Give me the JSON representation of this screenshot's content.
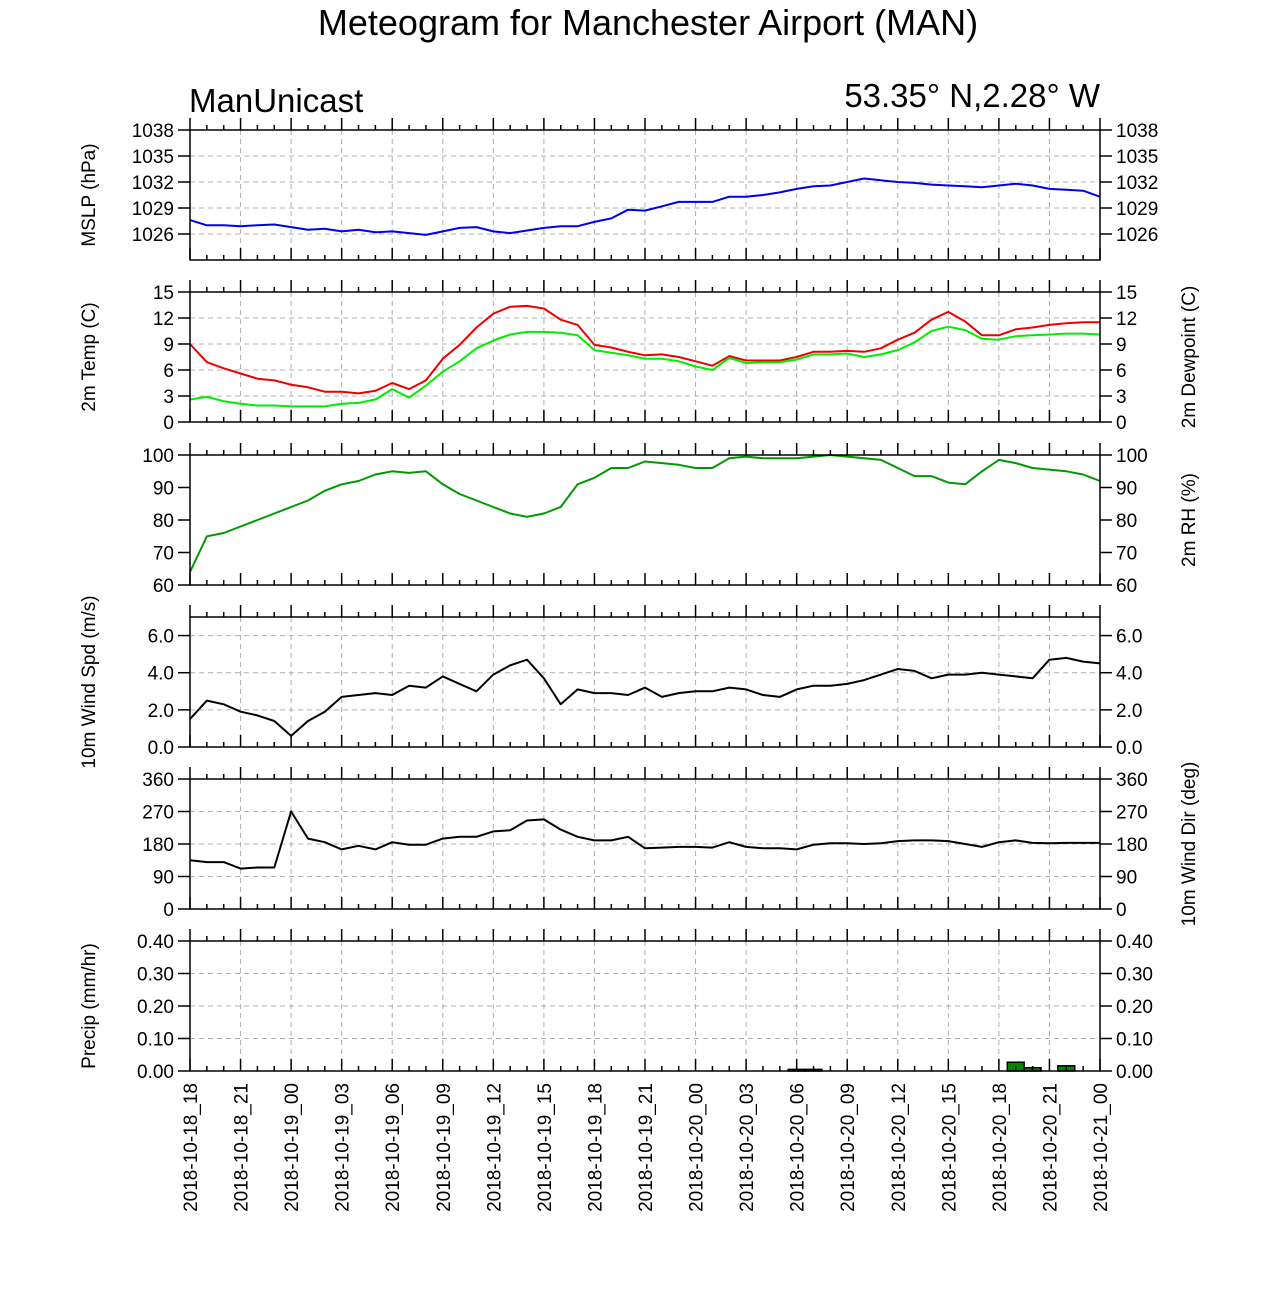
{
  "title": "Meteogram for Manchester Airport (MAN)",
  "left_label": "ManUnicast",
  "right_label": "53.35° N,2.28° W",
  "time_axis": {
    "start": "2018-10-18_18",
    "end": "2018-10-21_00",
    "labels": [
      "2018-10-18_18",
      "2018-10-18_21",
      "2018-10-19_00",
      "2018-10-19_03",
      "2018-10-19_06",
      "2018-10-19_09",
      "2018-10-19_12",
      "2018-10-19_15",
      "2018-10-19_18",
      "2018-10-19_21",
      "2018-10-20_00",
      "2018-10-20_03",
      "2018-10-20_06",
      "2018-10-20_09",
      "2018-10-20_12",
      "2018-10-20_15",
      "2018-10-20_18",
      "2018-10-20_21",
      "2018-10-21_00"
    ]
  },
  "colors": {
    "mslp": "#0000ee",
    "temp": "#ee0000",
    "dewpoint": "#00ee00",
    "rh": "#009900",
    "wind": "#000000",
    "precip_fill": "#008800"
  },
  "chart_data": [
    {
      "type": "line",
      "ylabel_left": "MSLP (hPa)",
      "ylabel_right": "",
      "ylim": [
        1023,
        1038
      ],
      "yticks": [
        1026,
        1029,
        1032,
        1035,
        1038
      ],
      "ytick_labels": [
        "1026",
        "1029",
        "1032",
        "1035",
        "1038"
      ],
      "grid": true,
      "series": [
        {
          "color": "#0000ee",
          "values": [
            1027.6,
            1027.0,
            1027.0,
            1026.9,
            1027.0,
            1027.1,
            1026.8,
            1026.5,
            1026.6,
            1026.3,
            1026.5,
            1026.2,
            1026.3,
            1026.1,
            1025.9,
            1026.3,
            1026.7,
            1026.8,
            1026.3,
            1026.1,
            1026.4,
            1026.7,
            1026.9,
            1026.9,
            1027.4,
            1027.8,
            1028.8,
            1028.7,
            1029.2,
            1029.7,
            1029.7,
            1029.7,
            1030.3,
            1030.3,
            1030.5,
            1030.8,
            1031.2,
            1031.5,
            1031.6,
            1032.0,
            1032.4,
            1032.2,
            1032.0,
            1031.9,
            1031.7,
            1031.6,
            1031.5,
            1031.4,
            1031.6,
            1031.8,
            1031.6,
            1031.2,
            1031.1,
            1031.0,
            1030.3
          ]
        }
      ]
    },
    {
      "type": "line",
      "ylabel_left": "2m Temp (C)",
      "ylabel_right": "2m Dewpoint (C)",
      "ylim": [
        0,
        15
      ],
      "yticks": [
        0,
        3,
        6,
        9,
        12,
        15
      ],
      "ytick_labels": [
        "0",
        "3",
        "6",
        "9",
        "12",
        "15"
      ],
      "grid": true,
      "series": [
        {
          "color": "#ee0000",
          "values": [
            9.0,
            6.9,
            6.2,
            5.6,
            5.0,
            4.8,
            4.3,
            4.0,
            3.5,
            3.5,
            3.3,
            3.6,
            4.5,
            3.8,
            4.8,
            7.3,
            8.9,
            10.9,
            12.5,
            13.3,
            13.4,
            13.1,
            11.8,
            11.2,
            8.9,
            8.6,
            8.1,
            7.7,
            7.8,
            7.5,
            7.0,
            6.5,
            7.6,
            7.1,
            7.1,
            7.1,
            7.5,
            8.1,
            8.1,
            8.2,
            8.1,
            8.5,
            9.5,
            10.3,
            11.8,
            12.7,
            11.6,
            10.0,
            10.0,
            10.7,
            10.9,
            11.2,
            11.4,
            11.5,
            11.5
          ]
        },
        {
          "color": "#00ee00",
          "values": [
            2.6,
            2.9,
            2.4,
            2.1,
            1.9,
            1.9,
            1.8,
            1.8,
            1.8,
            2.1,
            2.2,
            2.6,
            3.8,
            2.8,
            4.2,
            5.8,
            7.0,
            8.5,
            9.4,
            10.1,
            10.4,
            10.4,
            10.3,
            10.0,
            8.3,
            8.0,
            7.7,
            7.3,
            7.3,
            7.0,
            6.4,
            6.0,
            7.4,
            6.8,
            6.9,
            6.9,
            7.2,
            7.8,
            7.8,
            7.9,
            7.5,
            7.8,
            8.3,
            9.2,
            10.5,
            11.0,
            10.6,
            9.6,
            9.5,
            9.9,
            10.0,
            10.1,
            10.2,
            10.2,
            10.1
          ]
        }
      ]
    },
    {
      "type": "line",
      "ylabel_left": "",
      "ylabel_right": "2m RH (%)",
      "ylim": [
        60,
        100
      ],
      "yticks": [
        60,
        70,
        80,
        90,
        100
      ],
      "ytick_labels": [
        "60",
        "70",
        "80",
        "90",
        "100"
      ],
      "grid": false,
      "series": [
        {
          "color": "#009900",
          "values": [
            64,
            75,
            76,
            78,
            80,
            82,
            84,
            86,
            89,
            91,
            92,
            94,
            95,
            94.5,
            95,
            91,
            88,
            86,
            84,
            82,
            81,
            82,
            84,
            91,
            93,
            96,
            96,
            98,
            97.5,
            97,
            96,
            96,
            99,
            99.5,
            99,
            99,
            99,
            99.5,
            100,
            99.5,
            99,
            98.5,
            96,
            93.5,
            93.5,
            91.5,
            91,
            95,
            98.5,
            97.5,
            96,
            95.5,
            95,
            94,
            92
          ]
        }
      ]
    },
    {
      "type": "line",
      "ylabel_left": "10m Wind Spd (m/s)",
      "ylabel_right": "",
      "ylim": [
        0,
        7
      ],
      "yticks": [
        0,
        2,
        4,
        6
      ],
      "ytick_labels": [
        "0.0",
        "2.0",
        "4.0",
        "6.0"
      ],
      "grid": true,
      "series": [
        {
          "color": "#000000",
          "values": [
            1.5,
            2.5,
            2.3,
            1.9,
            1.7,
            1.4,
            0.6,
            1.4,
            1.9,
            2.7,
            2.8,
            2.9,
            2.8,
            3.3,
            3.2,
            3.8,
            3.4,
            3.0,
            3.9,
            4.4,
            4.7,
            3.7,
            2.3,
            3.1,
            2.9,
            2.9,
            2.8,
            3.2,
            2.7,
            2.9,
            3.0,
            3.0,
            3.2,
            3.1,
            2.8,
            2.7,
            3.1,
            3.3,
            3.3,
            3.4,
            3.6,
            3.9,
            4.2,
            4.1,
            3.7,
            3.9,
            3.9,
            4.0,
            3.9,
            3.8,
            3.7,
            4.7,
            4.8,
            4.6,
            4.5
          ]
        }
      ]
    },
    {
      "type": "line",
      "ylabel_left": "",
      "ylabel_right": "10m Wind Dir (deg)",
      "ylim": [
        0,
        360
      ],
      "yticks": [
        0,
        90,
        180,
        270,
        360
      ],
      "ytick_labels": [
        "0",
        "90",
        "180",
        "270",
        "360"
      ],
      "grid": true,
      "series": [
        {
          "color": "#000000",
          "values": [
            135,
            130,
            130,
            112,
            115,
            115,
            270,
            195,
            185,
            165,
            175,
            165,
            185,
            178,
            178,
            195,
            200,
            200,
            215,
            218,
            245,
            248,
            220,
            200,
            190,
            190,
            200,
            168,
            170,
            172,
            172,
            170,
            185,
            172,
            168,
            168,
            165,
            178,
            182,
            182,
            180,
            182,
            188,
            190,
            190,
            188,
            180,
            172,
            185,
            190,
            183,
            182,
            183,
            183,
            183
          ]
        }
      ]
    },
    {
      "type": "bar",
      "ylabel_left": "Precip (mm/hr)",
      "ylabel_right": "",
      "ylim": [
        0,
        0.4
      ],
      "yticks": [
        0,
        0.1,
        0.2,
        0.3,
        0.4
      ],
      "ytick_labels": [
        "0.00",
        "0.10",
        "0.20",
        "0.30",
        "0.40"
      ],
      "grid": true,
      "series": [
        {
          "color": "#008800",
          "values": [
            0,
            0,
            0,
            0,
            0,
            0,
            0,
            0,
            0,
            0,
            0,
            0,
            0,
            0,
            0,
            0,
            0,
            0,
            0,
            0,
            0,
            0,
            0,
            0,
            0,
            0,
            0,
            0,
            0,
            0,
            0,
            0,
            0,
            0,
            0,
            0,
            0.005,
            0.005,
            0,
            0,
            0,
            0,
            0,
            0,
            0,
            0,
            0,
            0,
            0,
            0.027,
            0.01,
            0,
            0.016,
            0,
            0
          ]
        }
      ]
    }
  ]
}
